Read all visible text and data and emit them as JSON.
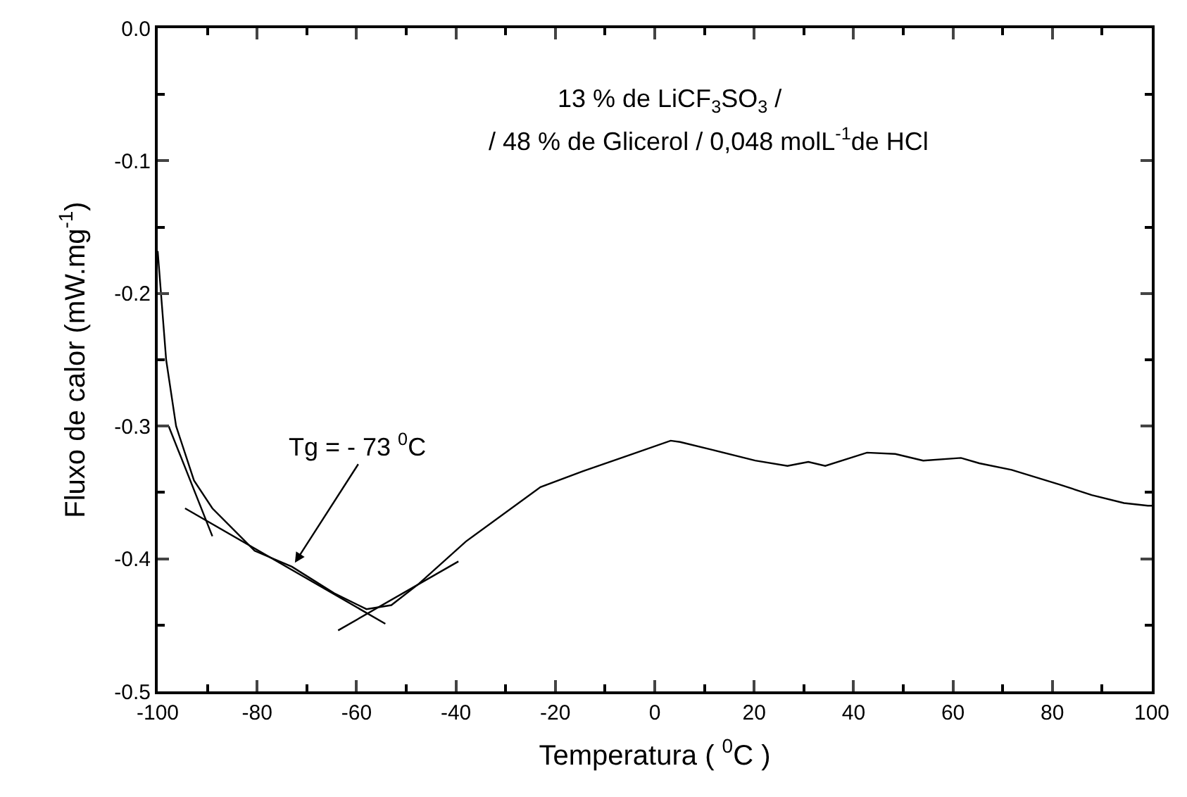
{
  "chart_data": {
    "type": "line",
    "xlabel": "Temperatura ( $^{0}$C )",
    "ylabel": "Fluxo de calor (mW.mg$^{-1}$)",
    "annotations": [
      "13 % de LiCF$_{3}$SO$_{3}$ /",
      "/ 48 % de Glicerol / 0,048 molL$^{-1}$de HCl",
      {
        "text": "Tg = - 73 $^{0}$C",
        "x": -72.4,
        "y": -0.403
      }
    ],
    "series": [
      {
        "color": "#000000",
        "x": [
          -100,
          -98.3,
          -96.3,
          -92.7,
          -89,
          -80.5,
          -73,
          -64.5,
          -58,
          -53,
          -47.5,
          -38,
          -23,
          -14.5,
          -5.2,
          3.2,
          5.1,
          11.7,
          20.2,
          26.7,
          30.9,
          34.3,
          42.7,
          48.4,
          54,
          61.6,
          65.3,
          71.8,
          81.4,
          87.9,
          94.4,
          99.2,
          100
        ],
        "values": [
          -0.168,
          -0.25,
          -0.3,
          -0.341,
          -0.362,
          -0.394,
          -0.406,
          -0.426,
          -0.438,
          -0.435,
          -0.419,
          -0.387,
          -0.346,
          -0.334,
          -0.322,
          -0.311,
          -0.312,
          -0.318,
          -0.326,
          -0.33,
          -0.327,
          -0.33,
          -0.32,
          -0.321,
          -0.326,
          -0.324,
          -0.328,
          -0.333,
          -0.344,
          -0.352,
          -0.358,
          -0.36,
          -0.36
        ]
      },
      {
        "color": "#000000",
        "x": [
          -97.8,
          -89
        ],
        "values": [
          -0.3,
          -0.383
        ]
      },
      {
        "color": "#000000",
        "x": [
          -94.5,
          -54.2
        ],
        "values": [
          -0.362,
          -0.449
        ]
      },
      {
        "color": "#000000",
        "x": [
          -63.7,
          -39.5
        ],
        "values": [
          -0.454,
          -0.402
        ]
      }
    ],
    "xlim": [
      -100,
      100
    ],
    "ylim": [
      -0.5,
      0
    ],
    "xticks": [
      -100,
      {
        "value": -90,
        "label": null
      },
      -80,
      {
        "value": -70,
        "label": null
      },
      -60,
      {
        "value": -50,
        "label": null
      },
      -40,
      {
        "value": -30,
        "label": null
      },
      -20,
      {
        "value": -10,
        "label": null
      },
      0,
      {
        "value": 10,
        "label": null
      },
      20,
      {
        "value": 30,
        "label": null
      },
      40,
      {
        "value": 50,
        "label": null
      },
      60,
      {
        "value": 70,
        "label": null
      },
      80,
      {
        "value": 90,
        "label": null
      },
      100
    ],
    "yticks": [
      -0.5,
      {
        "value": -0.45,
        "label": null
      },
      -0.4,
      {
        "value": -0.35,
        "label": null
      },
      -0.3,
      {
        "value": -0.25,
        "label": null
      },
      -0.2,
      {
        "value": -0.15,
        "label": null
      },
      -0.1,
      {
        "value": -0.05,
        "label": null
      },
      {
        "value": 0,
        "label": "0.0"
      }
    ],
    "grid": false,
    "line_style": "solid",
    "marker": "none"
  }
}
